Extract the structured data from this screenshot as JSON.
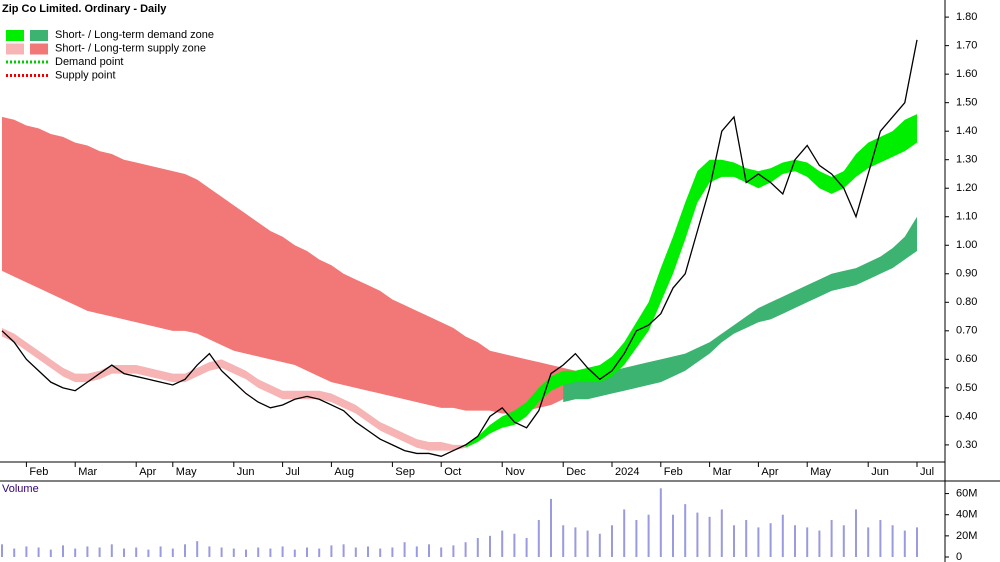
{
  "chart_data": {
    "type": "line",
    "title": "Zip Co Limited. Ordinary - Daily",
    "legend": [
      {
        "label": "Short- / Long-term demand zone",
        "colors": [
          "#00ee00",
          "#3cb371"
        ]
      },
      {
        "label": "Short- / Long-term supply zone",
        "colors": [
          "#f6b4b4",
          "#f27777"
        ]
      },
      {
        "label": "Demand point",
        "colors": [
          "#00cc00"
        ],
        "dotted": true
      },
      {
        "label": "Supply point",
        "colors": [
          "#ee0000"
        ],
        "dotted": true
      }
    ],
    "categories": [
      null,
      null,
      "Feb",
      null,
      null,
      null,
      "Mar",
      null,
      null,
      null,
      null,
      "Apr",
      null,
      null,
      "May",
      null,
      null,
      null,
      null,
      "Jun",
      null,
      null,
      null,
      "Jul",
      null,
      null,
      null,
      "Aug",
      null,
      null,
      null,
      null,
      "Sep",
      null,
      null,
      null,
      "Oct",
      null,
      null,
      null,
      null,
      "Nov",
      null,
      null,
      null,
      null,
      "Dec",
      null,
      null,
      null,
      "2024",
      null,
      null,
      null,
      "Feb",
      null,
      null,
      null,
      "Mar",
      null,
      null,
      null,
      "Apr",
      null,
      null,
      null,
      "May",
      null,
      null,
      null,
      null,
      "Jun",
      null,
      null,
      null,
      "Jul"
    ],
    "series": [
      {
        "color": "#000000",
        "values": [
          0.7,
          0.66,
          0.6,
          0.56,
          0.52,
          0.5,
          0.49,
          0.52,
          0.55,
          0.58,
          0.55,
          0.54,
          0.53,
          0.52,
          0.51,
          0.53,
          0.58,
          0.62,
          0.56,
          0.52,
          0.48,
          0.45,
          0.43,
          0.44,
          0.46,
          0.47,
          0.46,
          0.44,
          0.42,
          0.38,
          0.35,
          0.32,
          0.3,
          0.28,
          0.27,
          0.27,
          0.26,
          0.28,
          0.3,
          0.33,
          0.4,
          0.43,
          0.38,
          0.36,
          0.42,
          0.55,
          0.58,
          0.62,
          0.57,
          0.53,
          0.56,
          0.62,
          0.7,
          0.72,
          0.76,
          0.85,
          0.9,
          1.05,
          1.2,
          1.4,
          1.45,
          1.22,
          1.25,
          1.22,
          1.18,
          1.3,
          1.35,
          1.28,
          1.25,
          1.2,
          1.1,
          1.25,
          1.4,
          1.45,
          1.5,
          1.72
        ]
      }
    ],
    "zones": [
      {
        "color": "#f27777",
        "upper": [
          1.45,
          1.44,
          1.42,
          1.41,
          1.39,
          1.38,
          1.36,
          1.35,
          1.33,
          1.32,
          1.3,
          1.29,
          1.28,
          1.27,
          1.26,
          1.25,
          1.23,
          1.2,
          1.17,
          1.14,
          1.11,
          1.08,
          1.05,
          1.03,
          1.0,
          0.98,
          0.95,
          0.93,
          0.9,
          0.88,
          0.86,
          0.84,
          0.81,
          0.79,
          0.77,
          0.75,
          0.73,
          0.71,
          0.68,
          0.66,
          0.63,
          0.62,
          0.61,
          0.6,
          0.59,
          0.58,
          0.57,
          0.56,
          null,
          null,
          null,
          null,
          null,
          null,
          null,
          null,
          null,
          null,
          null,
          null,
          null,
          null,
          null,
          null,
          null,
          null,
          null,
          null,
          null,
          null,
          null,
          null,
          null,
          null,
          null,
          null
        ],
        "lower": [
          0.91,
          0.89,
          0.87,
          0.85,
          0.83,
          0.81,
          0.79,
          0.77,
          0.76,
          0.75,
          0.74,
          0.73,
          0.72,
          0.71,
          0.7,
          0.7,
          0.69,
          0.67,
          0.65,
          0.63,
          0.62,
          0.61,
          0.6,
          0.59,
          0.58,
          0.56,
          0.54,
          0.52,
          0.51,
          0.5,
          0.49,
          0.48,
          0.47,
          0.46,
          0.45,
          0.44,
          0.43,
          0.43,
          0.42,
          0.42,
          0.42,
          0.41,
          0.41,
          0.42,
          0.43,
          0.44,
          0.46,
          0.48,
          null,
          null,
          null,
          null,
          null,
          null,
          null,
          null,
          null,
          null,
          null,
          null,
          null,
          null,
          null,
          null,
          null,
          null,
          null,
          null,
          null,
          null,
          null,
          null,
          null,
          null,
          null,
          null
        ]
      },
      {
        "color": "#3cb371",
        "upper": [
          null,
          null,
          null,
          null,
          null,
          null,
          null,
          null,
          null,
          null,
          null,
          null,
          null,
          null,
          null,
          null,
          null,
          null,
          null,
          null,
          null,
          null,
          null,
          null,
          null,
          null,
          null,
          null,
          null,
          null,
          null,
          null,
          null,
          null,
          null,
          null,
          null,
          null,
          null,
          null,
          null,
          null,
          null,
          null,
          null,
          null,
          0.55,
          0.55,
          0.55,
          0.55,
          0.56,
          0.57,
          0.58,
          0.59,
          0.6,
          0.61,
          0.62,
          0.64,
          0.66,
          0.69,
          0.72,
          0.75,
          0.78,
          0.8,
          0.82,
          0.84,
          0.86,
          0.88,
          0.9,
          0.91,
          0.92,
          0.94,
          0.96,
          0.99,
          1.03,
          1.1
        ],
        "lower": [
          null,
          null,
          null,
          null,
          null,
          null,
          null,
          null,
          null,
          null,
          null,
          null,
          null,
          null,
          null,
          null,
          null,
          null,
          null,
          null,
          null,
          null,
          null,
          null,
          null,
          null,
          null,
          null,
          null,
          null,
          null,
          null,
          null,
          null,
          null,
          null,
          null,
          null,
          null,
          null,
          null,
          null,
          null,
          null,
          null,
          null,
          0.45,
          0.46,
          0.46,
          0.47,
          0.48,
          0.49,
          0.5,
          0.51,
          0.52,
          0.54,
          0.56,
          0.59,
          0.62,
          0.66,
          0.69,
          0.71,
          0.73,
          0.74,
          0.76,
          0.78,
          0.8,
          0.82,
          0.84,
          0.85,
          0.86,
          0.88,
          0.9,
          0.92,
          0.95,
          0.98
        ]
      },
      {
        "color": "#f6b4b4",
        "upper": [
          0.71,
          0.69,
          0.66,
          0.63,
          0.6,
          0.57,
          0.55,
          0.55,
          0.56,
          0.58,
          0.58,
          0.58,
          0.57,
          0.56,
          0.55,
          0.55,
          0.57,
          0.59,
          0.6,
          0.58,
          0.56,
          0.53,
          0.51,
          0.49,
          0.49,
          0.49,
          0.49,
          0.48,
          0.46,
          0.44,
          0.41,
          0.38,
          0.36,
          0.34,
          0.32,
          0.31,
          0.31,
          0.3,
          0.3,
          null,
          null,
          null,
          null,
          null,
          null,
          null,
          null,
          null,
          null,
          null,
          null,
          null,
          null,
          null,
          null,
          null,
          null,
          null,
          null,
          null,
          null,
          null,
          null,
          null,
          null,
          null,
          null,
          null,
          null,
          null,
          null,
          null,
          null,
          null,
          null,
          null
        ],
        "lower": [
          0.68,
          0.66,
          0.63,
          0.6,
          0.57,
          0.54,
          0.52,
          0.52,
          0.53,
          0.55,
          0.55,
          0.55,
          0.54,
          0.53,
          0.52,
          0.52,
          0.54,
          0.56,
          0.57,
          0.55,
          0.53,
          0.5,
          0.48,
          0.46,
          0.46,
          0.46,
          0.46,
          0.45,
          0.43,
          0.41,
          0.38,
          0.35,
          0.33,
          0.31,
          0.29,
          0.28,
          0.28,
          0.28,
          0.29,
          null,
          null,
          null,
          null,
          null,
          null,
          null,
          null,
          null,
          null,
          null,
          null,
          null,
          null,
          null,
          null,
          null,
          null,
          null,
          null,
          null,
          null,
          null,
          null,
          null,
          null,
          null,
          null,
          null,
          null,
          null,
          null,
          null,
          null,
          null,
          null,
          null
        ]
      },
      {
        "color": "#00ee00",
        "upper": [
          null,
          null,
          null,
          null,
          null,
          null,
          null,
          null,
          null,
          null,
          null,
          null,
          null,
          null,
          null,
          null,
          null,
          null,
          null,
          null,
          null,
          null,
          null,
          null,
          null,
          null,
          null,
          null,
          null,
          null,
          null,
          null,
          null,
          null,
          null,
          null,
          null,
          null,
          0.3,
          0.33,
          0.37,
          0.4,
          0.42,
          0.45,
          0.5,
          0.54,
          0.56,
          0.56,
          0.57,
          0.58,
          0.61,
          0.66,
          0.73,
          0.8,
          0.92,
          1.03,
          1.15,
          1.26,
          1.3,
          1.3,
          1.29,
          1.27,
          1.26,
          1.27,
          1.29,
          1.3,
          1.29,
          1.26,
          1.24,
          1.26,
          1.32,
          1.36,
          1.38,
          1.4,
          1.44,
          1.46
        ],
        "lower": [
          null,
          null,
          null,
          null,
          null,
          null,
          null,
          null,
          null,
          null,
          null,
          null,
          null,
          null,
          null,
          null,
          null,
          null,
          null,
          null,
          null,
          null,
          null,
          null,
          null,
          null,
          null,
          null,
          null,
          null,
          null,
          null,
          null,
          null,
          null,
          null,
          null,
          null,
          0.29,
          0.31,
          0.34,
          0.36,
          0.37,
          0.4,
          0.45,
          0.49,
          0.51,
          0.52,
          0.52,
          0.52,
          0.54,
          0.58,
          0.64,
          0.7,
          0.8,
          0.9,
          1.02,
          1.15,
          1.22,
          1.24,
          1.24,
          1.22,
          1.2,
          1.22,
          1.25,
          1.26,
          1.24,
          1.2,
          1.18,
          1.2,
          1.24,
          1.27,
          1.29,
          1.31,
          1.33,
          1.36
        ]
      }
    ],
    "ylim": [
      0.24,
      1.86
    ],
    "yticks": [
      {
        "value": 0.3,
        "label": "0.30"
      },
      {
        "value": 0.4,
        "label": "0.40"
      },
      {
        "value": 0.5,
        "label": "0.50"
      },
      {
        "value": 0.6,
        "label": "0.60"
      },
      {
        "value": 0.7,
        "label": "0.70"
      },
      {
        "value": 0.8,
        "label": "0.80"
      },
      {
        "value": 0.9,
        "label": "0.90"
      },
      {
        "value": 1.0,
        "label": "1.00"
      },
      {
        "value": 1.1,
        "label": "1.10"
      },
      {
        "value": 1.2,
        "label": "1.20"
      },
      {
        "value": 1.3,
        "label": "1.30"
      },
      {
        "value": 1.4,
        "label": "1.40"
      },
      {
        "value": 1.5,
        "label": "1.50"
      },
      {
        "value": 1.6,
        "label": "1.60"
      },
      {
        "value": 1.7,
        "label": "1.70"
      },
      {
        "value": 1.8,
        "label": "1.80"
      }
    ],
    "volume": {
      "title": "Volume",
      "color": "#9a9ae0",
      "values": [
        12,
        8,
        10,
        9,
        7,
        11,
        8,
        10,
        9,
        12,
        8,
        9,
        7,
        10,
        8,
        12,
        15,
        10,
        9,
        8,
        7,
        9,
        8,
        10,
        7,
        9,
        8,
        11,
        12,
        9,
        10,
        8,
        9,
        14,
        10,
        12,
        9,
        11,
        14,
        18,
        20,
        25,
        22,
        18,
        35,
        55,
        30,
        28,
        25,
        22,
        30,
        45,
        35,
        40,
        65,
        40,
        50,
        42,
        38,
        45,
        30,
        35,
        28,
        32,
        40,
        30,
        28,
        25,
        35,
        30,
        45,
        28,
        35,
        30,
        25,
        28
      ],
      "ylim": [
        0,
        70
      ],
      "yticks": [
        0,
        {
          "value": 20,
          "label": "20M"
        },
        {
          "value": 40,
          "label": "40M"
        },
        {
          "value": 60,
          "label": "60M"
        }
      ]
    }
  }
}
